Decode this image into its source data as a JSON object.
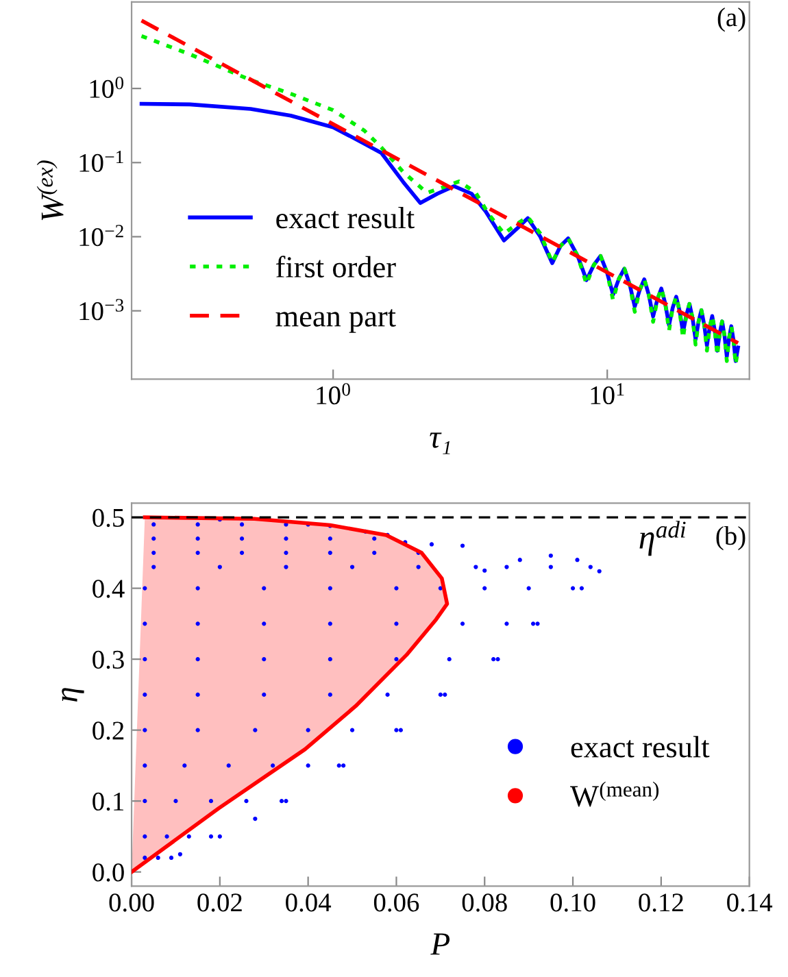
{
  "chart_data": [
    {
      "type": "line",
      "xlabel": "τ₁",
      "ylabel": "W$^{(ex)}$",
      "log": "xy",
      "xlim": [
        0.184,
        33
      ],
      "ylim": [
        0.00012,
        14.7
      ],
      "xticks": [
        {
          "value": 1,
          "label": "10$^{0}$"
        },
        {
          "value": 10,
          "label": "10$^{1}$"
        }
      ],
      "yticks": [
        {
          "value": 0.001,
          "label": "10$^{−3}$"
        },
        {
          "value": 0.01,
          "label": "10$^{−2}$"
        },
        {
          "value": 0.1,
          "label": "10$^{−1}$"
        },
        {
          "value": 1,
          "label": "10$^{0}$"
        }
      ],
      "legend": "lower left",
      "annotations": [
        "(a)"
      ],
      "series": [
        {
          "name": "exact result",
          "color": "#0000ff",
          "line_style": "solid",
          "x": [
            0.2,
            0.3,
            0.5,
            0.7,
            1.0,
            1.3,
            1.5,
            1.8,
            2.08,
            2.4,
            2.76,
            3.2,
            3.6,
            4.2,
            4.7,
            5.13,
            5.7,
            6.3,
            6.75,
            7.2,
            7.8,
            8.4,
            8.93,
            9.45,
            9.98,
            10.5,
            11.03,
            11.55,
            12.08,
            12.6,
            13.13,
            13.65,
            14.18,
            14.7,
            15.23,
            15.75,
            16.28,
            16.8,
            17.33,
            17.85,
            18.38,
            18.9,
            19.43,
            19.95,
            20.48,
            21,
            21.53,
            22.05,
            22.58,
            23.1,
            23.63,
            24.15,
            24.68,
            25.2,
            25.73,
            26.25,
            26.78,
            27.3,
            27.83,
            28.35,
            28.88,
            29.4,
            30
          ],
          "values": [
            0.62,
            0.61,
            0.53,
            0.43,
            0.3,
            0.18,
            0.135,
            0.055,
            0.0285,
            0.038,
            0.048,
            0.038,
            0.022,
            0.0089,
            0.013,
            0.0178,
            0.01,
            0.0044,
            0.0075,
            0.0095,
            0.0055,
            0.0026,
            0.00414,
            0.0055,
            0.00331,
            0.00165,
            0.00271,
            0.0037,
            0.00226,
            0.00114,
            0.00191,
            0.00266,
            0.00164,
            0.00084,
            0.00142,
            0.002,
            0.00125,
            0.00064,
            0.0011,
            0.00155,
            0.00098,
            0.00051,
            0.00087,
            0.00124,
            0.00079,
            0.00041,
            0.00071,
            0.00102,
            0.00065,
            0.00034,
            0.00059,
            0.00085,
            0.00054,
            0.00029,
            0.0005,
            0.00072,
            0.00046,
            0.00024,
            0.00043,
            0.00062,
            0.0004,
            0.00021,
            0.00032
          ]
        },
        {
          "name": "first order",
          "color": "#00ee00",
          "line_style": "dotted",
          "x": [
            0.2,
            0.3,
            0.5,
            0.7,
            1.0,
            1.3,
            1.5,
            1.8,
            2.2,
            2.5,
            2.88,
            3.3,
            3.7,
            4.2,
            4.7,
            5.13,
            5.7,
            6.3,
            6.75,
            7.2,
            7.8,
            8.4,
            8.93,
            9.45,
            9.98,
            10.5,
            11.03,
            11.55,
            12.08,
            12.6,
            13.13,
            13.65,
            14.18,
            14.7,
            15.23,
            15.75,
            16.28,
            16.8,
            17.33,
            17.85,
            18.38,
            18.9,
            19.43,
            19.95,
            20.48,
            21,
            21.53,
            22.05,
            22.58,
            23.1,
            23.63,
            24.15,
            24.68,
            25.2,
            25.73,
            26.25,
            26.78,
            27.3,
            27.83,
            28.35,
            28.88,
            29.4,
            30
          ],
          "values": [
            5.1,
            2.9,
            1.3,
            0.85,
            0.51,
            0.27,
            0.16,
            0.075,
            0.039,
            0.046,
            0.0556,
            0.04,
            0.02,
            0.011,
            0.015,
            0.0185,
            0.011,
            0.0045,
            0.0075,
            0.0095,
            0.0055,
            0.0023,
            0.00414,
            0.0055,
            0.00331,
            0.0014,
            0.00271,
            0.0037,
            0.00226,
            0.00097,
            0.00191,
            0.00266,
            0.00164,
            0.00071,
            0.00142,
            0.002,
            0.00125,
            0.00054,
            0.0011,
            0.00155,
            0.00098,
            0.00043,
            0.00087,
            0.00124,
            0.00079,
            0.00035,
            0.00071,
            0.00102,
            0.00065,
            0.00029,
            0.00059,
            0.00085,
            0.00054,
            0.00025,
            0.0005,
            0.00072,
            0.00046,
            0.00021,
            0.00043,
            0.00062,
            0.0004,
            0.00019,
            0.0003
          ]
        },
        {
          "name": "mean part",
          "color": "#ff0000",
          "line_style": "dashed",
          "x": [
            0.2,
            1,
            10,
            30
          ],
          "values": [
            8.25,
            0.33,
            0.0033,
            0.000367
          ]
        }
      ]
    },
    {
      "type": "scatter",
      "xlabel": "P",
      "ylabel": "η",
      "xlim": [
        0,
        0.14
      ],
      "ylim": [
        -0.02,
        0.52
      ],
      "xticks": [
        {
          "value": 0,
          "label": "0.00"
        },
        {
          "value": 0.02,
          "label": "0.02"
        },
        {
          "value": 0.04,
          "label": "0.04"
        },
        {
          "value": 0.06,
          "label": "0.06"
        },
        {
          "value": 0.08,
          "label": "0.08"
        },
        {
          "value": 0.1,
          "label": "0.10"
        },
        {
          "value": 0.12,
          "label": "0.12"
        },
        {
          "value": 0.14,
          "label": "0.14"
        }
      ],
      "yticks": [
        {
          "value": 0,
          "label": "0.0"
        },
        {
          "value": 0.1,
          "label": "0.1"
        },
        {
          "value": 0.2,
          "label": "0.2"
        },
        {
          "value": 0.3,
          "label": "0.3"
        },
        {
          "value": 0.4,
          "label": "0.4"
        },
        {
          "value": 0.5,
          "label": "0.5"
        }
      ],
      "legend": "lower right",
      "annotations": [
        "(b)"
      ],
      "ref_lines": [
        {
          "axis": "y",
          "value": 0.5,
          "label": "η$^{adi}$",
          "color": "#000000",
          "line_style": "dashed"
        }
      ],
      "series": [
        {
          "name": "exact result",
          "type": "scatter",
          "color": "#0000ff",
          "marker": "circle",
          "x": [
            0.011,
            0.02,
            0.028,
            0.035,
            0.048,
            0.061,
            0.071,
            0.083,
            0.092,
            0.102,
            0.106,
            0.101,
            0.095,
            0.088,
            0.08,
            0.078,
            0.075,
            0.068,
            0.062,
            0.058,
            0.053,
            0.045,
            0.02,
            0.003,
            0.006,
            0.009,
            0.003,
            0.008,
            0.013,
            0.018,
            0.003,
            0.01,
            0.018,
            0.026,
            0.034,
            0.003,
            0.012,
            0.022,
            0.032,
            0.04,
            0.047,
            0.003,
            0.015,
            0.028,
            0.04,
            0.05,
            0.06,
            0.003,
            0.015,
            0.03,
            0.045,
            0.058,
            0.07,
            0.003,
            0.015,
            0.03,
            0.045,
            0.06,
            0.072,
            0.082,
            0.003,
            0.015,
            0.03,
            0.045,
            0.06,
            0.075,
            0.085,
            0.091,
            0.003,
            0.015,
            0.03,
            0.045,
            0.06,
            0.07,
            0.08,
            0.09,
            0.1,
            0.005,
            0.02,
            0.035,
            0.05,
            0.065,
            0.085,
            0.095,
            0.104,
            0.005,
            0.015,
            0.025,
            0.035,
            0.045,
            0.055,
            0.065,
            0.005,
            0.015,
            0.025,
            0.035,
            0.045,
            0.055,
            0.005,
            0.015,
            0.025,
            0.035,
            0.04
          ],
          "values": [
            0.025,
            0.05,
            0.075,
            0.1,
            0.15,
            0.2,
            0.25,
            0.3,
            0.35,
            0.4,
            0.424,
            0.44,
            0.446,
            0.44,
            0.425,
            0.43,
            0.46,
            0.462,
            0.465,
            0.475,
            0.48,
            0.488,
            0.497,
            0.02,
            0.02,
            0.02,
            0.05,
            0.05,
            0.05,
            0.05,
            0.1,
            0.1,
            0.1,
            0.1,
            0.1,
            0.15,
            0.15,
            0.15,
            0.15,
            0.15,
            0.15,
            0.2,
            0.2,
            0.2,
            0.2,
            0.2,
            0.2,
            0.25,
            0.25,
            0.25,
            0.25,
            0.25,
            0.25,
            0.3,
            0.3,
            0.3,
            0.3,
            0.3,
            0.3,
            0.3,
            0.35,
            0.35,
            0.35,
            0.35,
            0.35,
            0.35,
            0.35,
            0.35,
            0.4,
            0.4,
            0.4,
            0.4,
            0.4,
            0.4,
            0.4,
            0.4,
            0.4,
            0.43,
            0.43,
            0.43,
            0.43,
            0.43,
            0.43,
            0.43,
            0.43,
            0.45,
            0.45,
            0.45,
            0.45,
            0.45,
            0.45,
            0.45,
            0.47,
            0.47,
            0.47,
            0.47,
            0.47,
            0.47,
            0.49,
            0.49,
            0.49,
            0.49,
            0.49
          ]
        },
        {
          "name": "W$^{(mean)}$",
          "type": "area",
          "color": "#ff0000",
          "x": [
            0.0,
            0.0198,
            0.0393,
            0.0508,
            0.0623,
            0.069,
            0.0715,
            0.0703,
            0.0657,
            0.0577,
            0.045,
            0.0278,
            0.003
          ],
          "values": [
            0.0,
            0.09,
            0.173,
            0.234,
            0.306,
            0.356,
            0.378,
            0.414,
            0.45,
            0.475,
            0.489,
            0.498,
            0.5
          ]
        }
      ]
    }
  ]
}
